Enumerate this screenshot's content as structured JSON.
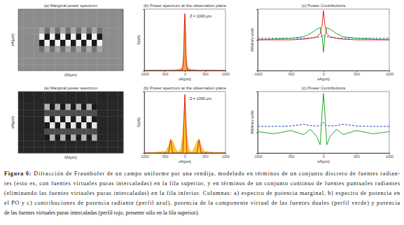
{
  "chart_data": [
    {
      "type": "heatmap",
      "title": "(a) Marginal power spectrum",
      "x_label": "ξA(μm)",
      "y_label": "xA(μm)",
      "tick_labels": false,
      "color_range": [
        0,
        1
      ],
      "cells": [
        [
          0.55,
          0.55,
          0.55,
          0.55,
          0.55,
          0.55,
          0.55,
          0.55,
          0.55,
          0.55,
          0.55,
          0.55,
          0.55,
          0.55,
          0.55,
          0.55,
          0.55,
          0.55,
          0.55,
          0.55
        ],
        [
          0.55,
          0.55,
          0.55,
          0.55,
          0.55,
          0.55,
          0.55,
          0.55,
          0.55,
          0.55,
          0.55,
          0.55,
          0.55,
          0.55,
          0.55,
          0.55,
          0.55,
          0.55,
          0.55,
          0.55
        ],
        [
          0.55,
          0.55,
          0.55,
          0.55,
          0.55,
          0.55,
          0.55,
          0.55,
          0.55,
          0.55,
          0.55,
          0.55,
          0.55,
          0.55,
          0.55,
          0.55,
          0.55,
          0.55,
          0.55,
          0.55
        ],
        [
          0.55,
          0.55,
          0.55,
          0.55,
          0.65,
          0.45,
          0.65,
          0.45,
          0.65,
          0.45,
          0.65,
          0.45,
          0.65,
          0.45,
          0.65,
          0.45,
          0.55,
          0.55,
          0.55,
          0.55
        ],
        [
          0.55,
          0.55,
          0.55,
          0.55,
          0.95,
          0.1,
          0.95,
          0.1,
          0.95,
          0.1,
          0.95,
          0.1,
          0.95,
          0.1,
          0.95,
          0.1,
          0.55,
          0.55,
          0.55,
          0.55
        ],
        [
          0.55,
          0.55,
          0.55,
          0.55,
          0.1,
          0.95,
          0.1,
          0.95,
          0.1,
          0.95,
          0.1,
          0.95,
          0.1,
          0.95,
          0.1,
          0.95,
          0.55,
          0.55,
          0.55,
          0.55
        ],
        [
          0.55,
          0.55,
          0.55,
          0.55,
          0.45,
          0.65,
          0.45,
          0.65,
          0.45,
          0.65,
          0.45,
          0.65,
          0.45,
          0.65,
          0.45,
          0.65,
          0.55,
          0.55,
          0.55,
          0.55
        ],
        [
          0.55,
          0.55,
          0.55,
          0.55,
          0.55,
          0.55,
          0.55,
          0.55,
          0.55,
          0.55,
          0.55,
          0.55,
          0.55,
          0.55,
          0.55,
          0.55,
          0.55,
          0.55,
          0.55,
          0.55
        ],
        [
          0.55,
          0.55,
          0.55,
          0.55,
          0.55,
          0.55,
          0.55,
          0.55,
          0.55,
          0.55,
          0.55,
          0.55,
          0.55,
          0.55,
          0.55,
          0.55,
          0.55,
          0.55,
          0.55,
          0.55
        ],
        [
          0.55,
          0.55,
          0.55,
          0.55,
          0.55,
          0.55,
          0.55,
          0.55,
          0.55,
          0.55,
          0.55,
          0.55,
          0.55,
          0.55,
          0.55,
          0.55,
          0.55,
          0.55,
          0.55,
          0.55
        ]
      ]
    },
    {
      "type": "line",
      "title": "(b) Power spectrum at the observation plane",
      "x_label": "xA(μm)",
      "y_label": "S(xA)",
      "annotation": "Z = 1000 μm",
      "tick_labels": "x",
      "x": [
        -1000,
        -600,
        -300,
        -150,
        -60,
        -30,
        -10,
        0,
        10,
        30,
        60,
        150,
        300,
        600,
        1000
      ],
      "xlim": [
        -1000,
        1000
      ],
      "xticks": [
        -1000,
        -500,
        0,
        500,
        1000
      ],
      "ylim": [
        0,
        1.05
      ],
      "yticks": [
        0
      ],
      "series": [
        {
          "type": "area",
          "color": "#f0a030",
          "values": [
            0.005,
            0.01,
            0.01,
            0.02,
            0.05,
            0.3,
            0.85,
            0.97,
            0.85,
            0.3,
            0.05,
            0.02,
            0.01,
            0.01,
            0.005
          ]
        },
        {
          "type": "line",
          "color": "#e3261b",
          "values": [
            0,
            0,
            0,
            0,
            0.01,
            0.2,
            0.8,
            0.97,
            0.8,
            0.2,
            0.01,
            0,
            0,
            0,
            0
          ]
        }
      ]
    },
    {
      "type": "line",
      "title": "(c) Power Contributions",
      "x_label": "xA(μm)",
      "y_label": "Arbitrary units",
      "tick_labels": "x",
      "x": [
        -1000,
        -750,
        -500,
        -300,
        -200,
        -100,
        -50,
        -20,
        0,
        20,
        50,
        100,
        200,
        300,
        500,
        750,
        1000
      ],
      "xlim": [
        -1000,
        1000
      ],
      "xticks": [
        -1000,
        -500,
        0,
        500,
        1000
      ],
      "ylim": [
        -1,
        1
      ],
      "yticks": [
        0
      ],
      "series": [
        {
          "color": "#2040c0",
          "line_style": "dashed",
          "values": [
            0.05,
            0.05,
            0.05,
            0.05,
            0.06,
            0.08,
            0.1,
            0.12,
            0.15,
            0.12,
            0.1,
            0.08,
            0.06,
            0.05,
            0.05,
            0.05,
            0.05
          ]
        },
        {
          "color": "#22aa22",
          "line_style": "solid",
          "values": [
            0,
            0.02,
            0.05,
            0.1,
            0.2,
            0.35,
            0.4,
            0.1,
            -0.4,
            0.1,
            0.4,
            0.35,
            0.2,
            0.1,
            0.05,
            0.02,
            0
          ]
        },
        {
          "color": "#e02020",
          "line_style": "solid",
          "values": [
            0,
            0,
            0,
            0.02,
            0.05,
            0.1,
            0.2,
            0.5,
            0.95,
            0.5,
            0.2,
            0.1,
            0.05,
            0.02,
            0,
            0,
            0
          ]
        }
      ]
    },
    {
      "type": "heatmap",
      "title": "(a) Marginal power spectrum",
      "x_label": "ξA(μm)",
      "y_label": "xA(μm)",
      "tick_labels": false,
      "color_range": [
        0,
        1
      ],
      "cells": [
        [
          0.15,
          0.15,
          0.15,
          0.15,
          0.15,
          0.15,
          0.15,
          0.15,
          0.15,
          0.15,
          0.15,
          0.15,
          0.15,
          0.15,
          0.15,
          0.15,
          0.15,
          0.15,
          0.15,
          0.15
        ],
        [
          0.15,
          0.15,
          0.15,
          0.15,
          0.15,
          0.15,
          0.15,
          0.15,
          0.15,
          0.15,
          0.15,
          0.15,
          0.15,
          0.15,
          0.15,
          0.15,
          0.15,
          0.15,
          0.15,
          0.15
        ],
        [
          0.15,
          0.15,
          0.15,
          0.15,
          0.15,
          0.7,
          0.1,
          0.7,
          0.1,
          0.7,
          0.1,
          0.7,
          0.1,
          0.7,
          0.1,
          0.15,
          0.15,
          0.15,
          0.15,
          0.15
        ],
        [
          0.15,
          0.15,
          0.15,
          0.15,
          0.15,
          0.3,
          0.3,
          0.3,
          0.3,
          0.3,
          0.3,
          0.3,
          0.3,
          0.3,
          0.3,
          0.15,
          0.15,
          0.15,
          0.15,
          0.15
        ],
        [
          0.15,
          0.15,
          0.15,
          0.15,
          0.15,
          0.9,
          0.1,
          0.9,
          0.1,
          0.9,
          0.1,
          0.9,
          0.1,
          0.9,
          0.1,
          0.15,
          0.15,
          0.15,
          0.15,
          0.15
        ],
        [
          0.15,
          0.15,
          0.15,
          0.15,
          0.15,
          0.1,
          0.9,
          0.1,
          0.9,
          0.1,
          0.9,
          0.1,
          0.9,
          0.1,
          0.9,
          0.15,
          0.15,
          0.15,
          0.15,
          0.15
        ],
        [
          0.15,
          0.15,
          0.15,
          0.15,
          0.15,
          0.3,
          0.3,
          0.3,
          0.3,
          0.3,
          0.3,
          0.3,
          0.3,
          0.3,
          0.3,
          0.15,
          0.15,
          0.15,
          0.15,
          0.15
        ],
        [
          0.15,
          0.15,
          0.15,
          0.15,
          0.15,
          0.1,
          0.7,
          0.1,
          0.7,
          0.1,
          0.7,
          0.1,
          0.7,
          0.1,
          0.7,
          0.15,
          0.15,
          0.15,
          0.15,
          0.15
        ],
        [
          0.15,
          0.15,
          0.15,
          0.15,
          0.15,
          0.15,
          0.15,
          0.15,
          0.15,
          0.15,
          0.15,
          0.15,
          0.15,
          0.15,
          0.15,
          0.15,
          0.15,
          0.15,
          0.15,
          0.15
        ],
        [
          0.15,
          0.15,
          0.15,
          0.15,
          0.15,
          0.15,
          0.15,
          0.15,
          0.15,
          0.15,
          0.15,
          0.15,
          0.15,
          0.15,
          0.15,
          0.15,
          0.15,
          0.15,
          0.15,
          0.15
        ]
      ]
    },
    {
      "type": "line",
      "title": "(b) Power spectrum at the observation plane",
      "x_label": "xA(μm)",
      "y_label": "S(xA)",
      "annotation": "Z = 1000 μm",
      "tick_labels": "x",
      "x": [
        -1000,
        -950,
        -900,
        -850,
        -800,
        -750,
        -700,
        -650,
        -600,
        -550,
        -500,
        -450,
        -400,
        -350,
        -300,
        -250,
        -200,
        -150,
        -100,
        -50,
        0,
        50,
        100,
        150,
        200,
        250,
        300,
        350,
        400,
        450,
        500,
        550,
        600,
        650,
        700,
        750,
        800,
        850,
        900,
        950,
        1000
      ],
      "xlim": [
        -1000,
        1000
      ],
      "xticks": [
        -1000,
        -500,
        0,
        500,
        1000
      ],
      "ylim": [
        0,
        1.05
      ],
      "yticks": [
        0
      ],
      "series": [
        {
          "type": "area",
          "color": "#f5c518",
          "values": [
            0.01,
            0.01,
            0.01,
            0.01,
            0.01,
            0.01,
            0.015,
            0.02,
            0.015,
            0.03,
            0.02,
            0.05,
            0.13,
            0.23,
            0.21,
            0.11,
            0.04,
            0.02,
            0.07,
            0.32,
            0.95,
            0.32,
            0.07,
            0.02,
            0.04,
            0.11,
            0.21,
            0.23,
            0.13,
            0.05,
            0.02,
            0.03,
            0.015,
            0.02,
            0.015,
            0.01,
            0.01,
            0.01,
            0.01,
            0.01,
            0.01
          ]
        },
        {
          "type": "line",
          "color": "#e3261b",
          "values": [
            0,
            0,
            0,
            0,
            0,
            0,
            0,
            0,
            0,
            0,
            0,
            0,
            0,
            0.23,
            0,
            0,
            0,
            0,
            0,
            0,
            1.0,
            0,
            0,
            0,
            0,
            0,
            0,
            0.23,
            0,
            0,
            0,
            0,
            0,
            0,
            0,
            0,
            0,
            0,
            0,
            0,
            0
          ]
        }
      ]
    },
    {
      "type": "line",
      "title": "(c) Power Contributions",
      "x_label": "xA(μm)",
      "y_label": "Arbitrary units",
      "tick_labels": "x",
      "x": [
        -1000,
        -750,
        -500,
        -300,
        -200,
        -100,
        -50,
        -20,
        0,
        20,
        50,
        100,
        200,
        300,
        500,
        750,
        1000
      ],
      "xlim": [
        -1000,
        1000
      ],
      "xticks": [
        -1000,
        -500,
        0,
        500,
        1000
      ],
      "ylim": [
        -0.5,
        1
      ],
      "yticks": [
        0
      ],
      "series": [
        {
          "color": "#2040c0",
          "line_style": "dashed",
          "values": [
            0.15,
            0.15,
            0.16,
            0.2,
            0.17,
            0.16,
            0.17,
            0.2,
            0.25,
            0.2,
            0.17,
            0.16,
            0.17,
            0.2,
            0.16,
            0.15,
            0.15
          ]
        },
        {
          "color": "#22aa22",
          "line_style": "solid",
          "values": [
            0.02,
            -0.03,
            0.05,
            -0.05,
            0.08,
            -0.1,
            -0.3,
            0.5,
            0.95,
            0.5,
            -0.3,
            -0.1,
            0.08,
            -0.05,
            0.05,
            -0.03,
            0.02
          ]
        }
      ]
    }
  ],
  "caption": {
    "label": "Figura 6:",
    "lines": [
      "Difracción de Fraunhofer de un campo uniforme por una rendija, modelado en términos de un conjunto discreto de fuentes radian-",
      "tes (esto es, con fuentes virtuales puras intercaladas) en la fila superior, y en términos de un conjunto continuo de fuentes puntuales radiantes",
      "(eliminando las fuentes virtuales puras intercaladas) en la fila inferior. Columnas: a) espectro de potencia marginal, b) espectro de potencia en",
      "el PO y c) contribuciones de potencia radiante (perfil azul), potencia de la componente virtual de las fuentes duales (perfil verde) y potencia",
      "de las fuentes virtuales puras intercaladas (perfil rojo, presente sólo en la fila superior)."
    ]
  }
}
